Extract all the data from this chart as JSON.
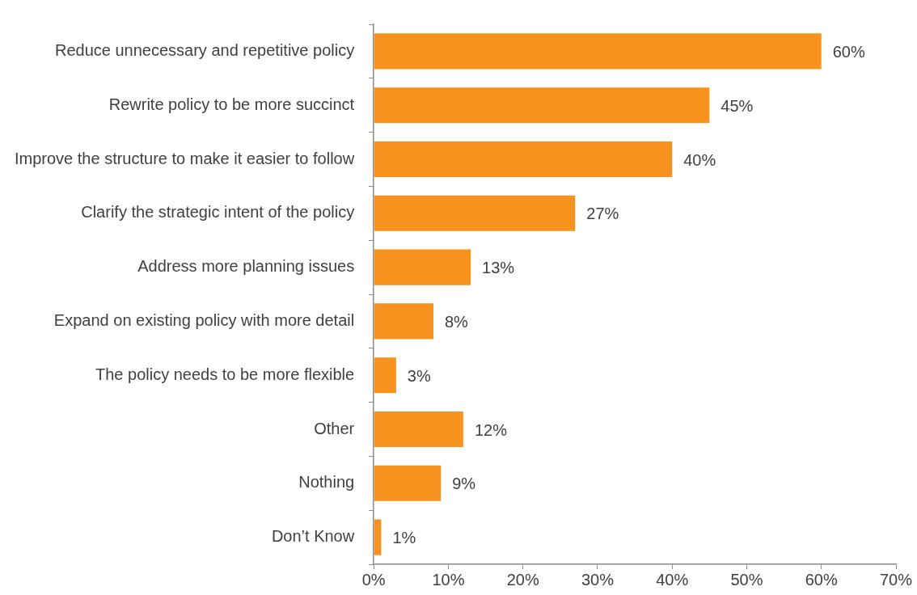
{
  "chart_data": {
    "type": "bar",
    "orientation": "horizontal",
    "categories": [
      "Reduce unnecessary and repetitive policy",
      "Rewrite policy to be more succinct",
      "Improve the structure to make it easier to follow",
      "Clarify the strategic intent of the policy",
      "Address more planning issues",
      "Expand on existing policy with more detail",
      "The policy needs to be more flexible",
      "Other",
      "Nothing",
      "Don’t Know"
    ],
    "values": [
      60,
      45,
      40,
      27,
      13,
      8,
      3,
      12,
      9,
      1
    ],
    "value_labels": [
      "60%",
      "45%",
      "40%",
      "27%",
      "13%",
      "8%",
      "3%",
      "12%",
      "9%",
      "1%"
    ],
    "color": "#f7921e",
    "xlim": [
      0,
      70
    ],
    "xticks": [
      {
        "value": 0,
        "label": "0%"
      },
      {
        "value": 10,
        "label": "10%"
      },
      {
        "value": 20,
        "label": "20%"
      },
      {
        "value": 30,
        "label": "30%"
      },
      {
        "value": 40,
        "label": "40%"
      },
      {
        "value": 50,
        "label": "50%"
      },
      {
        "value": 60,
        "label": "60%"
      },
      {
        "value": 70,
        "label": "70%"
      }
    ],
    "grid": false,
    "legend": false
  }
}
